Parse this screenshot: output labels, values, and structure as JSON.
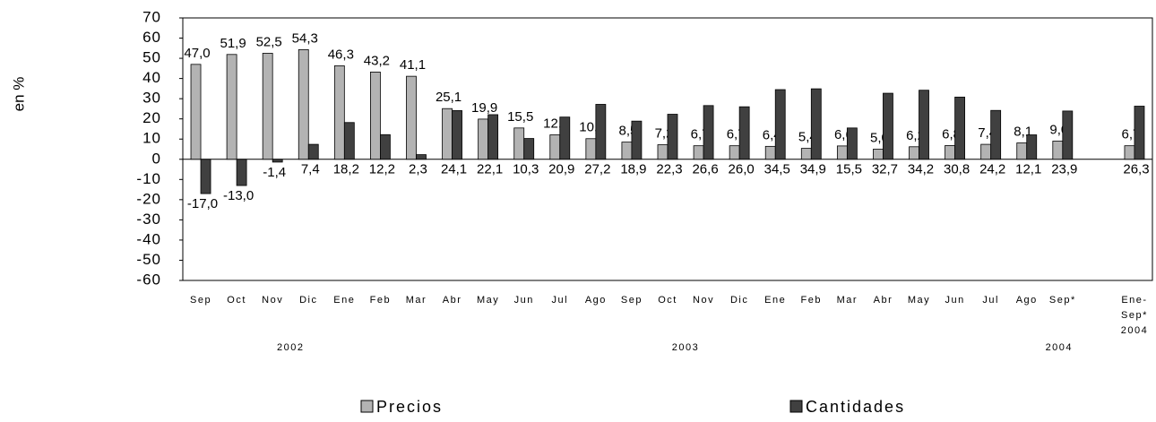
{
  "chart_data": {
    "type": "bar",
    "y_label": "en %",
    "categories": [
      "Sep",
      "Oct",
      "Nov",
      "Dic",
      "Ene",
      "Feb",
      "Mar",
      "Abr",
      "May",
      "Jun",
      "Jul",
      "Ago",
      "Sep",
      "Oct",
      "Nov",
      "Dic",
      "Ene",
      "Feb",
      "Mar",
      "Abr",
      "May",
      "Jun",
      "Jul",
      "Ago",
      "Sep*",
      null,
      "Ene-Sep* 2004"
    ],
    "year_labels": [
      "2002",
      "2003",
      "2004"
    ],
    "series": [
      {
        "name": "Precios",
        "color": "#b3b3b3",
        "values": [
          47.0,
          51.9,
          52.5,
          54.3,
          46.3,
          43.2,
          41.1,
          25.1,
          19.9,
          15.5,
          12.1,
          10.2,
          8.5,
          7.2,
          6.7,
          6.7,
          6.4,
          5.4,
          6.6,
          5.0,
          6.2,
          6.8,
          7.4,
          8.1,
          9.0,
          null,
          6.7
        ],
        "value_labels": [
          "47,0",
          "51,9",
          "52,5",
          "54,3",
          "46,3",
          "43,2",
          "41,1",
          "25,1",
          "19,9",
          "15,5",
          "12,1",
          "10,2",
          "8,5",
          "7,2",
          "6,7",
          "6,7",
          "6,4",
          "5,4",
          "6,6",
          "5,0",
          "6,2",
          "6,8",
          "7,4",
          "8,1",
          "9,0",
          null,
          "6,7"
        ]
      },
      {
        "name": "Cantidades",
        "color": "#404040",
        "values": [
          -17.0,
          -13.0,
          -1.4,
          7.4,
          18.2,
          12.2,
          2.3,
          24.1,
          22.1,
          10.3,
          20.9,
          27.2,
          18.9,
          22.3,
          26.6,
          26.0,
          34.5,
          34.9,
          15.5,
          32.7,
          34.2,
          30.8,
          24.2,
          12.1,
          23.9,
          null,
          26.3
        ],
        "value_labels": [
          "-17,0",
          "-13,0",
          "-1,4",
          "7,4",
          "18,2",
          "12,2",
          "2,3",
          "24,1",
          "22,1",
          "10,3",
          "20,9",
          "27,2",
          "18,9",
          "22,3",
          "26,6",
          "26,0",
          "34,5",
          "34,9",
          "15,5",
          "32,7",
          "34,2",
          "30,8",
          "24,2",
          "12,1",
          "23,9",
          null,
          "26,3"
        ]
      }
    ],
    "ylim": [
      -60,
      70
    ],
    "yticks": [
      70,
      60,
      50,
      40,
      30,
      20,
      10,
      0,
      -10,
      -20,
      -30,
      -40,
      -50,
      -60
    ],
    "grid": false,
    "legend": "bottom"
  }
}
